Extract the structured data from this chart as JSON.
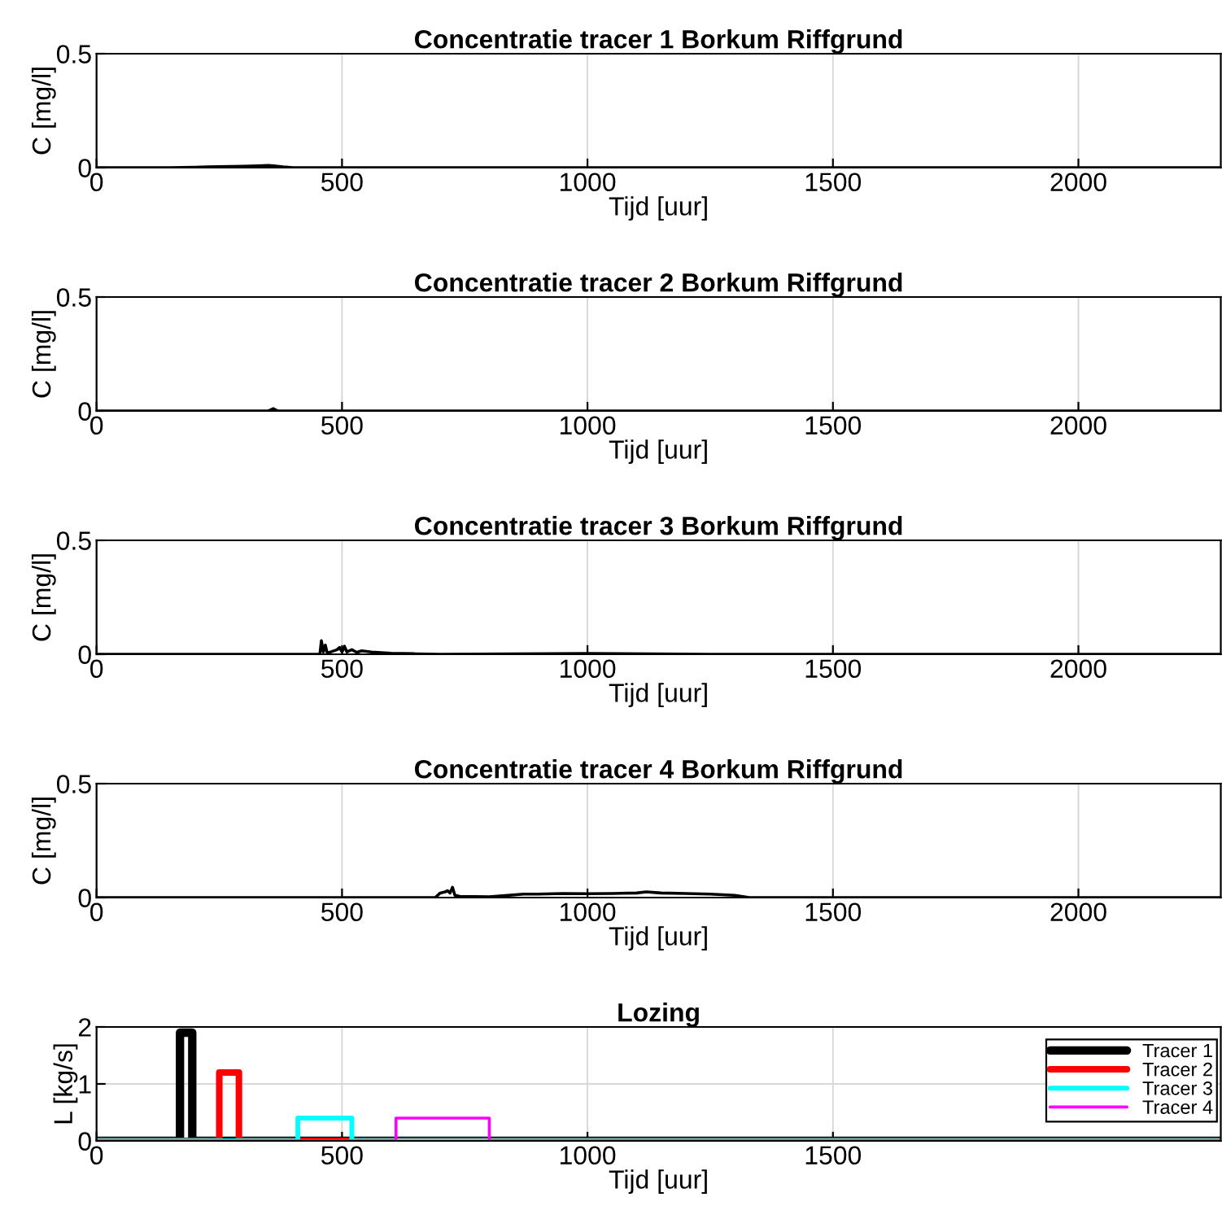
{
  "chart_data": [
    {
      "type": "line",
      "title": "Concentratie tracer 1 Borkum Riffgrund",
      "xlabel": "Tijd [uur]",
      "ylabel": "C [mg/l]",
      "xlim": [
        0,
        2290
      ],
      "xticks": [
        0,
        500,
        1000,
        1500,
        2000
      ],
      "ylim": [
        0,
        0.5
      ],
      "yticks": [
        0,
        0.5
      ],
      "grid": true,
      "legend": false,
      "series": [
        {
          "color": "#000000",
          "x": [
            0,
            150,
            200,
            250,
            300,
            330,
            350,
            360,
            380,
            400,
            2290
          ],
          "values": [
            0,
            0,
            0.002,
            0.004,
            0.006,
            0.008,
            0.01,
            0.008,
            0.003,
            0,
            0
          ]
        }
      ]
    },
    {
      "type": "line",
      "title": "Concentratie tracer 2 Borkum Riffgrund",
      "xlabel": "Tijd [uur]",
      "ylabel": "C [mg/l]",
      "xlim": [
        0,
        2290
      ],
      "xticks": [
        0,
        500,
        1000,
        1500,
        2000
      ],
      "ylim": [
        0,
        0.5
      ],
      "yticks": [
        0,
        0.5
      ],
      "grid": true,
      "legend": false,
      "series": [
        {
          "color": "#000000",
          "x": [
            0,
            350,
            355,
            360,
            365,
            370,
            2290
          ],
          "values": [
            0,
            0,
            0.005,
            0.01,
            0.004,
            0,
            0
          ]
        }
      ]
    },
    {
      "type": "line",
      "title": "Concentratie tracer 3 Borkum Riffgrund",
      "xlabel": "Tijd [uur]",
      "ylabel": "C [mg/l]",
      "xlim": [
        0,
        2290
      ],
      "xticks": [
        0,
        500,
        1000,
        1500,
        2000
      ],
      "ylim": [
        0,
        0.5
      ],
      "yticks": [
        0,
        0.5
      ],
      "grid": true,
      "legend": false,
      "series": [
        {
          "color": "#000000",
          "x": [
            0,
            455,
            458,
            462,
            466,
            470,
            490,
            495,
            500,
            505,
            510,
            520,
            530,
            540,
            560,
            580,
            600,
            650,
            700,
            1000,
            1250,
            2290
          ],
          "values": [
            0,
            0,
            0.06,
            0.01,
            0.04,
            0.005,
            0.02,
            0.03,
            0.01,
            0.035,
            0.01,
            0.02,
            0.008,
            0.015,
            0.01,
            0.007,
            0.004,
            0.002,
            0,
            0.003,
            0,
            0
          ]
        }
      ]
    },
    {
      "type": "line",
      "title": "Concentratie tracer 4 Borkum Riffgrund",
      "xlabel": "Tijd [uur]",
      "ylabel": "C [mg/l]",
      "xlim": [
        0,
        2290
      ],
      "xticks": [
        0,
        500,
        1000,
        1500,
        2000
      ],
      "ylim": [
        0,
        0.5
      ],
      "yticks": [
        0,
        0.5
      ],
      "grid": true,
      "legend": false,
      "series": [
        {
          "color": "#000000",
          "x": [
            0,
            690,
            700,
            710,
            715,
            720,
            725,
            730,
            740,
            800,
            870,
            900,
            950,
            1000,
            1050,
            1100,
            1120,
            1150,
            1200,
            1250,
            1300,
            1330,
            2290
          ],
          "values": [
            0,
            0,
            0.02,
            0.025,
            0.03,
            0.02,
            0.045,
            0.01,
            0.005,
            0.003,
            0.015,
            0.015,
            0.018,
            0.017,
            0.018,
            0.02,
            0.025,
            0.02,
            0.018,
            0.015,
            0.01,
            0,
            0
          ]
        }
      ]
    },
    {
      "type": "line",
      "title": "Lozing",
      "xlabel": "Tijd [uur]",
      "ylabel": "L [kg/s]",
      "xlim": [
        0,
        2290
      ],
      "xticks": [
        0,
        500,
        1000,
        1500
      ],
      "ylim": [
        0,
        2
      ],
      "yticks": [
        0,
        1,
        2
      ],
      "grid": true,
      "legend": "right",
      "series": [
        {
          "name": "Tracer 1",
          "color": "#000000",
          "x": [
            0,
            170,
            170,
            195,
            195,
            2290
          ],
          "values": [
            0,
            0,
            1.9,
            1.9,
            0,
            0
          ]
        },
        {
          "name": "Tracer 2",
          "color": "#ff0000",
          "x": [
            0,
            250,
            250,
            290,
            290,
            2290
          ],
          "values": [
            0,
            0,
            1.2,
            1.2,
            0,
            0
          ]
        },
        {
          "name": "Tracer 3",
          "color": "#00ffff",
          "x": [
            0,
            410,
            410,
            520,
            520,
            2290
          ],
          "values": [
            0,
            0,
            0.4,
            0.4,
            0,
            0
          ]
        },
        {
          "name": "Tracer 4",
          "color": "#ff00ff",
          "x": [
            0,
            610,
            610,
            800,
            800,
            2290
          ],
          "values": [
            0,
            0,
            0.4,
            0.4,
            0,
            0
          ]
        }
      ]
    }
  ]
}
